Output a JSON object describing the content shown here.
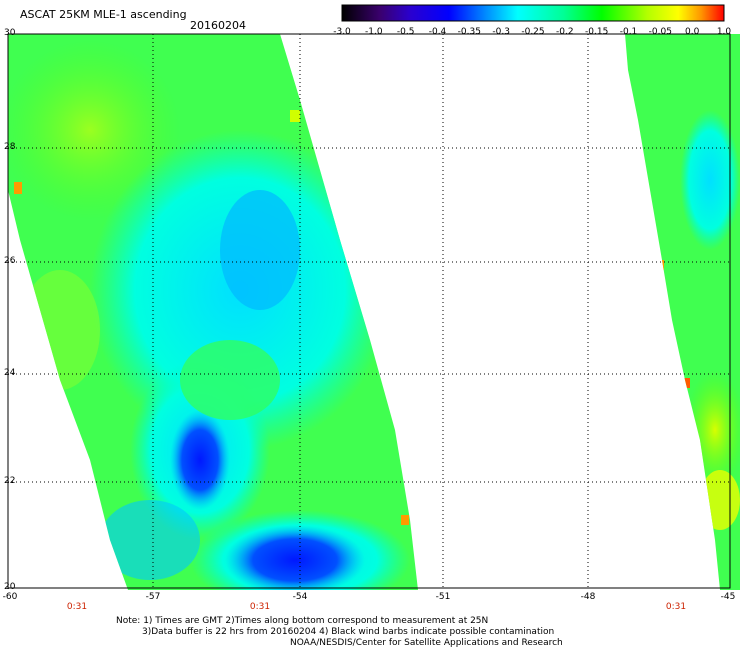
{
  "title": "ASCAT 25KM MLE-1 ascending",
  "date": "20160204",
  "colorbar": {
    "labels": [
      "-3.0",
      "-1.0",
      "-0.5",
      "-0.4",
      "-0.35",
      "-0.3",
      "-0.25",
      "-0.2",
      "-0.15",
      "-0.1",
      "-0.05",
      "0.0",
      "1.0"
    ],
    "colors": [
      "#000000",
      "#3a006e",
      "#3a00c8",
      "#0000ff",
      "#0060ff",
      "#00b4ff",
      "#00ffff",
      "#00ff96",
      "#00ff00",
      "#96ff00",
      "#ffff00",
      "#ff9600",
      "#ff0000"
    ]
  },
  "map": {
    "lat_labels": [
      "30",
      "28",
      "26",
      "24",
      "22",
      "20"
    ],
    "lon_labels": [
      "-60",
      "-57",
      "-54",
      "-51",
      "-48",
      "-45"
    ],
    "time_labels": [
      "0:31",
      "0:31",
      "0:31"
    ],
    "lat_range": [
      20,
      30
    ],
    "lon_range": [
      -60,
      -45
    ]
  },
  "notes": {
    "line1": "Note: 1) Times are GMT 2)Times along bottom correspond to measurement at 25N",
    "line2": "3)Data buffer is 22 hrs from 20160204 4) Black wind barbs indicate possible contamination",
    "line3": "NOAA/NESDIS/Center for Satellite Applications and Research"
  }
}
